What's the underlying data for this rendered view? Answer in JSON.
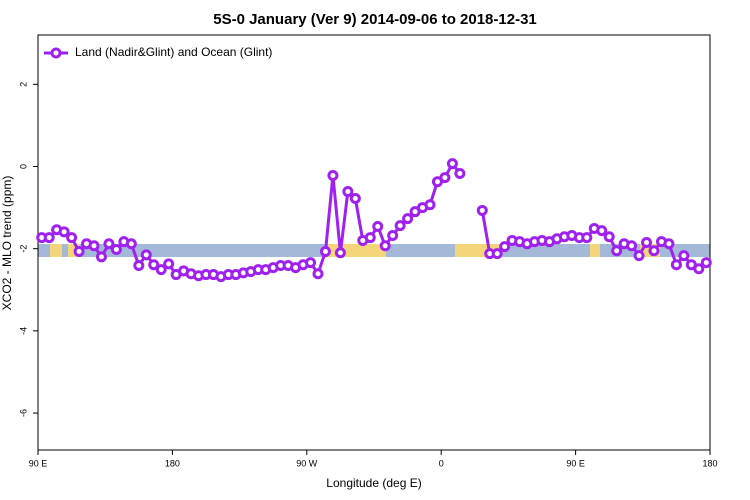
{
  "chart_data": {
    "type": "line",
    "title": "5S-0 January (Ver 9)   2014-09-06 to 2018-12-31",
    "x_label": "Longitude (deg E)",
    "y_label": "XCO2 - MLO trend (ppm)",
    "xlim": [
      90,
      540
    ],
    "ylim": [
      -6.9,
      3.2
    ],
    "xticks": [
      {
        "value": 90,
        "label": "90 E"
      },
      180,
      {
        "value": 270,
        "label": "90 W"
      },
      {
        "value": 360,
        "label": "0"
      },
      {
        "value": 450,
        "label": "90 E"
      },
      {
        "value": 540,
        "label": "180"
      }
    ],
    "yticks": [
      -6,
      -4,
      -2,
      0,
      2
    ],
    "legend_position": "top-left",
    "x": [
      92.5,
      97.5,
      102.5,
      107.5,
      112.5,
      117.5,
      122.5,
      127.5,
      132.5,
      137.5,
      142.5,
      147.5,
      152.5,
      157.5,
      162.5,
      167.5,
      172.5,
      177.5,
      182.5,
      187.5,
      192.5,
      197.5,
      202.5,
      207.5,
      212.5,
      217.5,
      222.5,
      227.5,
      232.5,
      237.5,
      242.5,
      247.5,
      252.5,
      257.5,
      262.5,
      267.5,
      272.5,
      277.5,
      282.5,
      287.5,
      292.5,
      297.5,
      302.5,
      307.5,
      312.5,
      317.5,
      322.5,
      327.5,
      332.5,
      337.5,
      342.5,
      347.5,
      352.5,
      357.5,
      362.5,
      367.5,
      372.5,
      377.5,
      382.5,
      387.5,
      392.5,
      397.5,
      402.5,
      407.5,
      412.5,
      417.5,
      422.5,
      427.5,
      432.5,
      437.5,
      442.5,
      447.5,
      452.5,
      457.5,
      462.5,
      467.5,
      472.5,
      477.5,
      482.5,
      487.5,
      492.5,
      497.5,
      502.5,
      507.5,
      512.5,
      517.5,
      522.5,
      527.5,
      532.5,
      537.5
    ],
    "series": [
      {
        "name": "Land (Nadir&Glint) and Ocean (Glint)",
        "color": "#a020f0",
        "values": [
          -1.73,
          -1.73,
          -1.54,
          -1.59,
          -1.73,
          -2.07,
          -1.88,
          -1.93,
          -2.2,
          -1.88,
          -2.02,
          -1.83,
          -1.88,
          -2.41,
          -2.15,
          -2.39,
          -2.51,
          -2.37,
          -2.63,
          -2.54,
          -2.61,
          -2.66,
          -2.63,
          -2.63,
          -2.68,
          -2.63,
          -2.63,
          -2.59,
          -2.56,
          -2.51,
          -2.51,
          -2.46,
          -2.41,
          -2.41,
          -2.46,
          -2.39,
          -2.34,
          -2.61,
          -2.07,
          -0.22,
          -2.1,
          -0.61,
          -0.78,
          -1.8,
          -1.73,
          -1.46,
          -1.93,
          -1.68,
          -1.44,
          -1.27,
          -1.1,
          -1.0,
          -0.93,
          -0.37,
          -0.27,
          0.07,
          -0.17,
          null,
          null,
          -1.07,
          -2.12,
          -2.12,
          -1.95,
          -1.8,
          -1.83,
          -1.88,
          -1.83,
          -1.8,
          -1.83,
          -1.76,
          -1.71,
          -1.68,
          -1.73,
          -1.73,
          -1.51,
          -1.56,
          -1.71,
          -2.05,
          -1.88,
          -1.93,
          -2.17,
          -1.85,
          -2.05,
          -1.83,
          -1.88,
          -2.39,
          -2.17,
          -2.39,
          -2.49,
          -2.34
        ]
      }
    ]
  }
}
